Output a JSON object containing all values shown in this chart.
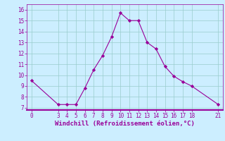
{
  "x": [
    0,
    3,
    4,
    5,
    6,
    7,
    8,
    9,
    10,
    11,
    12,
    13,
    14,
    15,
    16,
    17,
    18,
    21
  ],
  "y": [
    9.5,
    7.3,
    7.3,
    7.3,
    8.8,
    10.5,
    11.8,
    13.5,
    15.7,
    15.0,
    15.0,
    13.0,
    12.4,
    10.8,
    9.9,
    9.4,
    9.0,
    7.3
  ],
  "line_color": "#990099",
  "marker_color": "#990099",
  "bg_color": "#cceeff",
  "grid_color": "#99cccc",
  "xlabel": "Windchill (Refroidissement éolien,°C)",
  "xticks": [
    0,
    3,
    4,
    5,
    6,
    7,
    8,
    9,
    10,
    11,
    12,
    13,
    14,
    15,
    16,
    17,
    18,
    21
  ],
  "yticks": [
    7,
    8,
    9,
    10,
    11,
    12,
    13,
    14,
    15,
    16
  ],
  "xlim": [
    -0.5,
    21.5
  ],
  "ylim": [
    6.8,
    16.5
  ],
  "tick_color": "#990099",
  "label_color": "#990099",
  "fontsize_tick": 5.5,
  "fontsize_label": 6.5,
  "border_color": "#990099"
}
